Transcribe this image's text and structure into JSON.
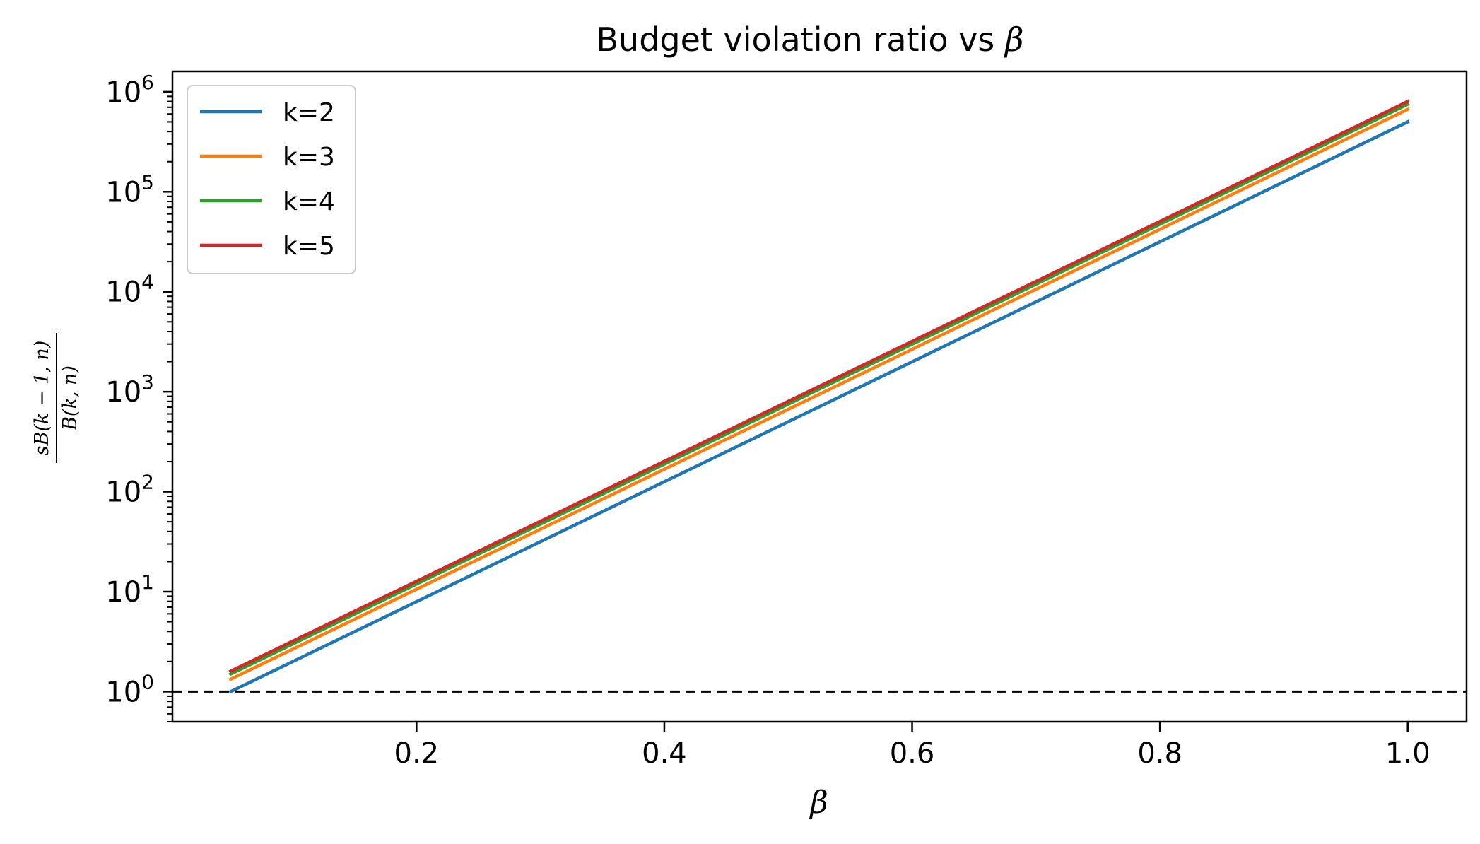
{
  "chart_data": {
    "type": "line",
    "title_text": "Budget violation ratio vs ",
    "title_symbol": "β",
    "xlabel": "β",
    "ylabel_numerator": "sB(k − 1, n)",
    "ylabel_denominator": "B(k, n)",
    "x_scale": "linear",
    "y_scale": "log",
    "xlim": [
      0.003,
      1.0475
    ],
    "ylim": [
      0.5,
      1600000
    ],
    "x_ticks": [
      {
        "value": 0.2,
        "label": "0.2"
      },
      {
        "value": 0.4,
        "label": "0.4"
      },
      {
        "value": 0.6,
        "label": "0.6"
      },
      {
        "value": 0.8,
        "label": "0.8"
      },
      {
        "value": 1.0,
        "label": "1.0"
      }
    ],
    "y_ticks": [
      {
        "value": 1,
        "base": "10",
        "exp": "0"
      },
      {
        "value": 10,
        "base": "10",
        "exp": "1"
      },
      {
        "value": 100,
        "base": "10",
        "exp": "2"
      },
      {
        "value": 1000,
        "base": "10",
        "exp": "3"
      },
      {
        "value": 10000,
        "base": "10",
        "exp": "4"
      },
      {
        "value": 100000,
        "base": "10",
        "exp": "5"
      },
      {
        "value": 1000000,
        "base": "10",
        "exp": "6"
      }
    ],
    "grid": false,
    "legend_position": "top-left",
    "reference_line": {
      "y": 1,
      "style": "dashed",
      "color": "#000000"
    },
    "series": [
      {
        "name": "k=2",
        "color": "#1f77b4",
        "x": [
          0.05,
          1.0
        ],
        "y": [
          1.0,
          500000
        ]
      },
      {
        "name": "k=3",
        "color": "#ff7f0e",
        "x": [
          0.05,
          1.0
        ],
        "y": [
          1.33,
          667000
        ]
      },
      {
        "name": "k=4",
        "color": "#2ca02c",
        "x": [
          0.05,
          1.0
        ],
        "y": [
          1.5,
          750000
        ]
      },
      {
        "name": "k=5",
        "color": "#d62728",
        "x": [
          0.05,
          1.0
        ],
        "y": [
          1.6,
          800000
        ]
      }
    ]
  }
}
